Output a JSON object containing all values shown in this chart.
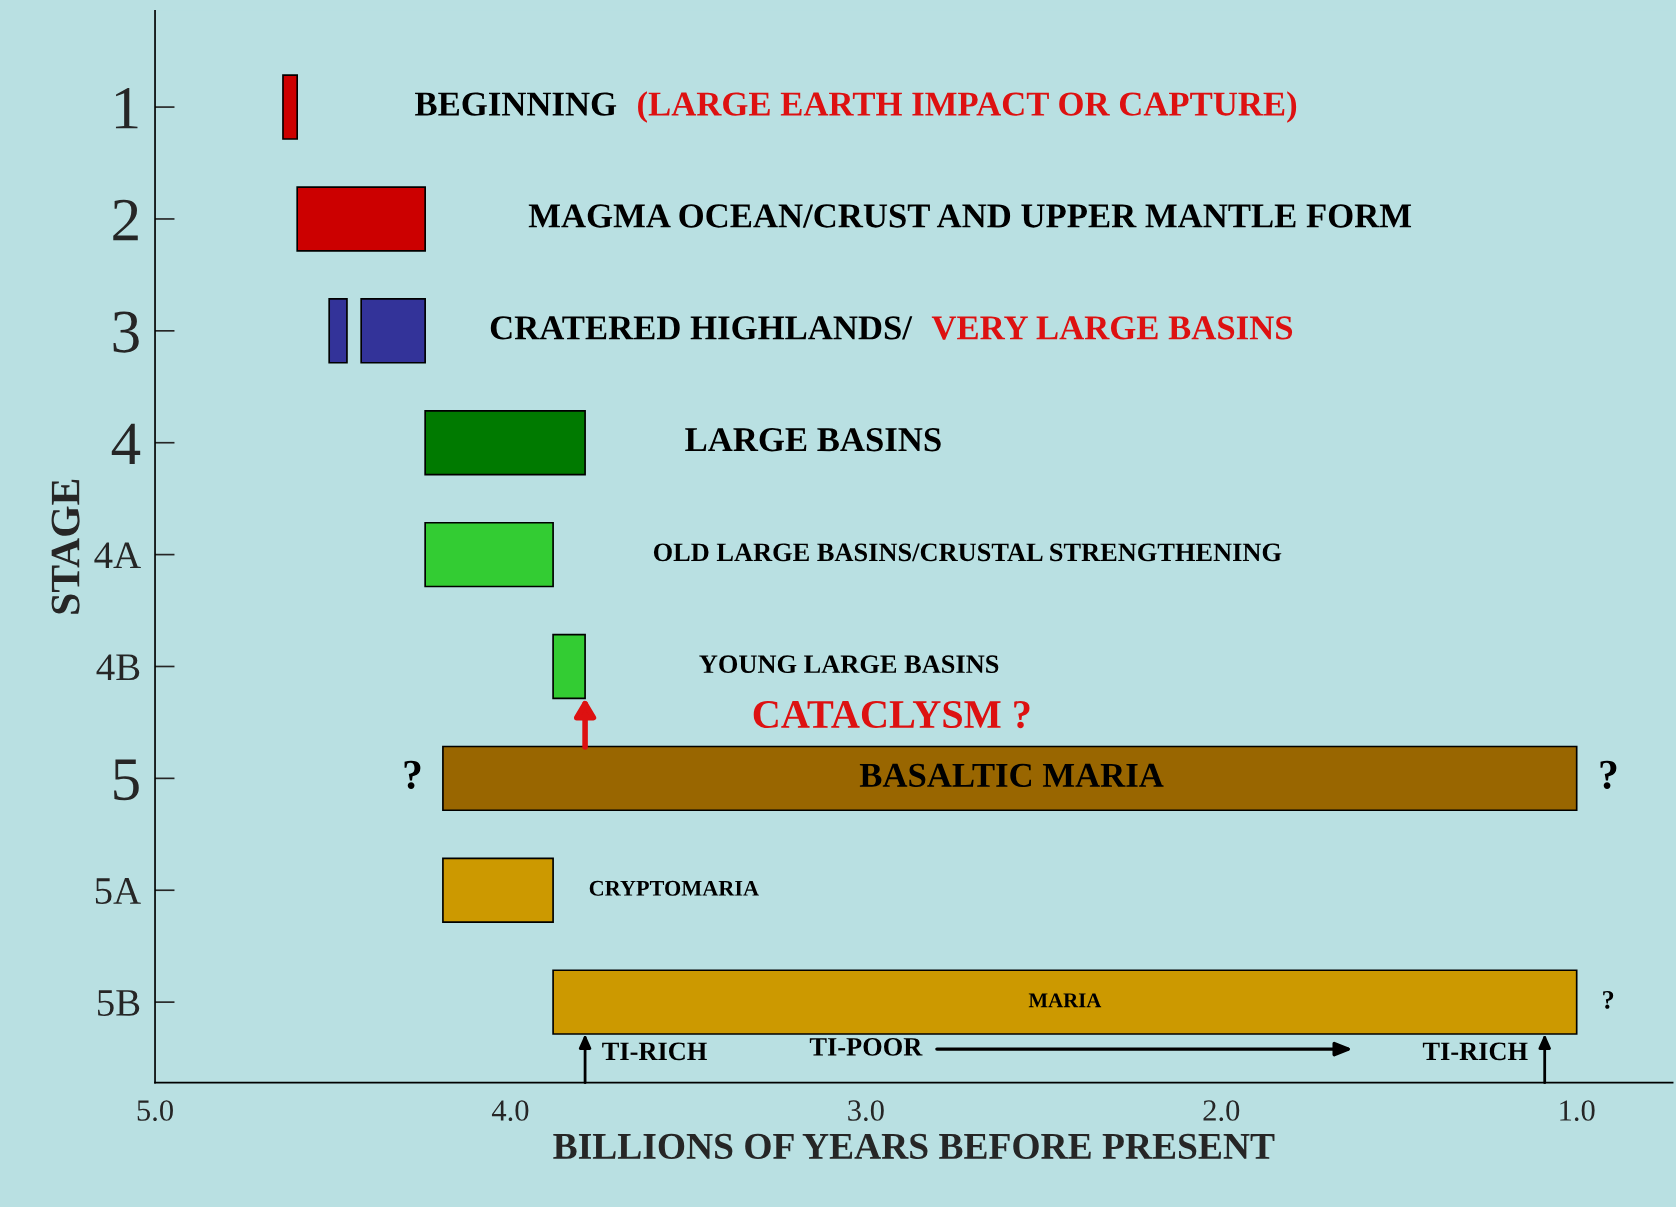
{
  "chart_data": {
    "type": "bar",
    "orientation": "horizontal",
    "xlabel": "BILLIONS OF YEARS BEFORE PRESENT",
    "ylabel": "STAGE",
    "categories": [
      "1",
      "2",
      "3",
      "4",
      "4A",
      "4B",
      "5",
      "5A",
      "5B"
    ],
    "series": [
      {
        "values": [
          0.04,
          0.36,
          0.18,
          0.45,
          0.36,
          0.09,
          3.19,
          0.31,
          2.88
        ],
        "base": [
          4.6,
          4.24,
          4.24,
          3.79,
          3.88,
          3.79,
          1.0,
          3.88,
          1.0
        ],
        "colors": [
          "#cc0000",
          "#cc0000",
          "#333399",
          "#007a00",
          "#33cc33",
          "#33cc33",
          "#996600",
          "#cc9900",
          "#cc9900"
        ]
      },
      {
        "values": [
          null,
          null,
          0.05,
          null,
          null,
          null,
          null,
          null,
          null
        ],
        "base": [
          null,
          null,
          4.46,
          null,
          null,
          null,
          null,
          null,
          null
        ],
        "colors": [
          null,
          null,
          "#333399",
          null,
          null,
          null,
          null,
          null,
          null
        ]
      }
    ],
    "xlim": [
      5.0,
      0.73
    ],
    "xticks": [
      {
        "value": 5,
        "label": "5.0"
      },
      {
        "value": 4,
        "label": "4.0"
      },
      {
        "value": 3,
        "label": "3.0"
      },
      {
        "value": 2,
        "label": "2.0"
      },
      {
        "value": 1,
        "label": "1.0"
      }
    ],
    "grid": false,
    "annotations": [
      "BEGINNING",
      "(LARGE EARTH IMPACT OR CAPTURE)",
      "MAGMA OCEAN/CRUST AND UPPER MANTLE FORM",
      "CRATERED HIGHLANDS/",
      "VERY LARGE BASINS",
      "LARGE BASINS",
      "OLD LARGE BASINS/CRUSTAL STRENGTHENING",
      "YOUNG LARGE BASINS",
      "CATACLYSM ?",
      "?",
      "BASALTIC MARIA",
      "?",
      "CRYPTOMARIA",
      "MARIA",
      "?",
      "TI-RICH",
      "TI-POOR",
      "TI-RICH"
    ]
  }
}
